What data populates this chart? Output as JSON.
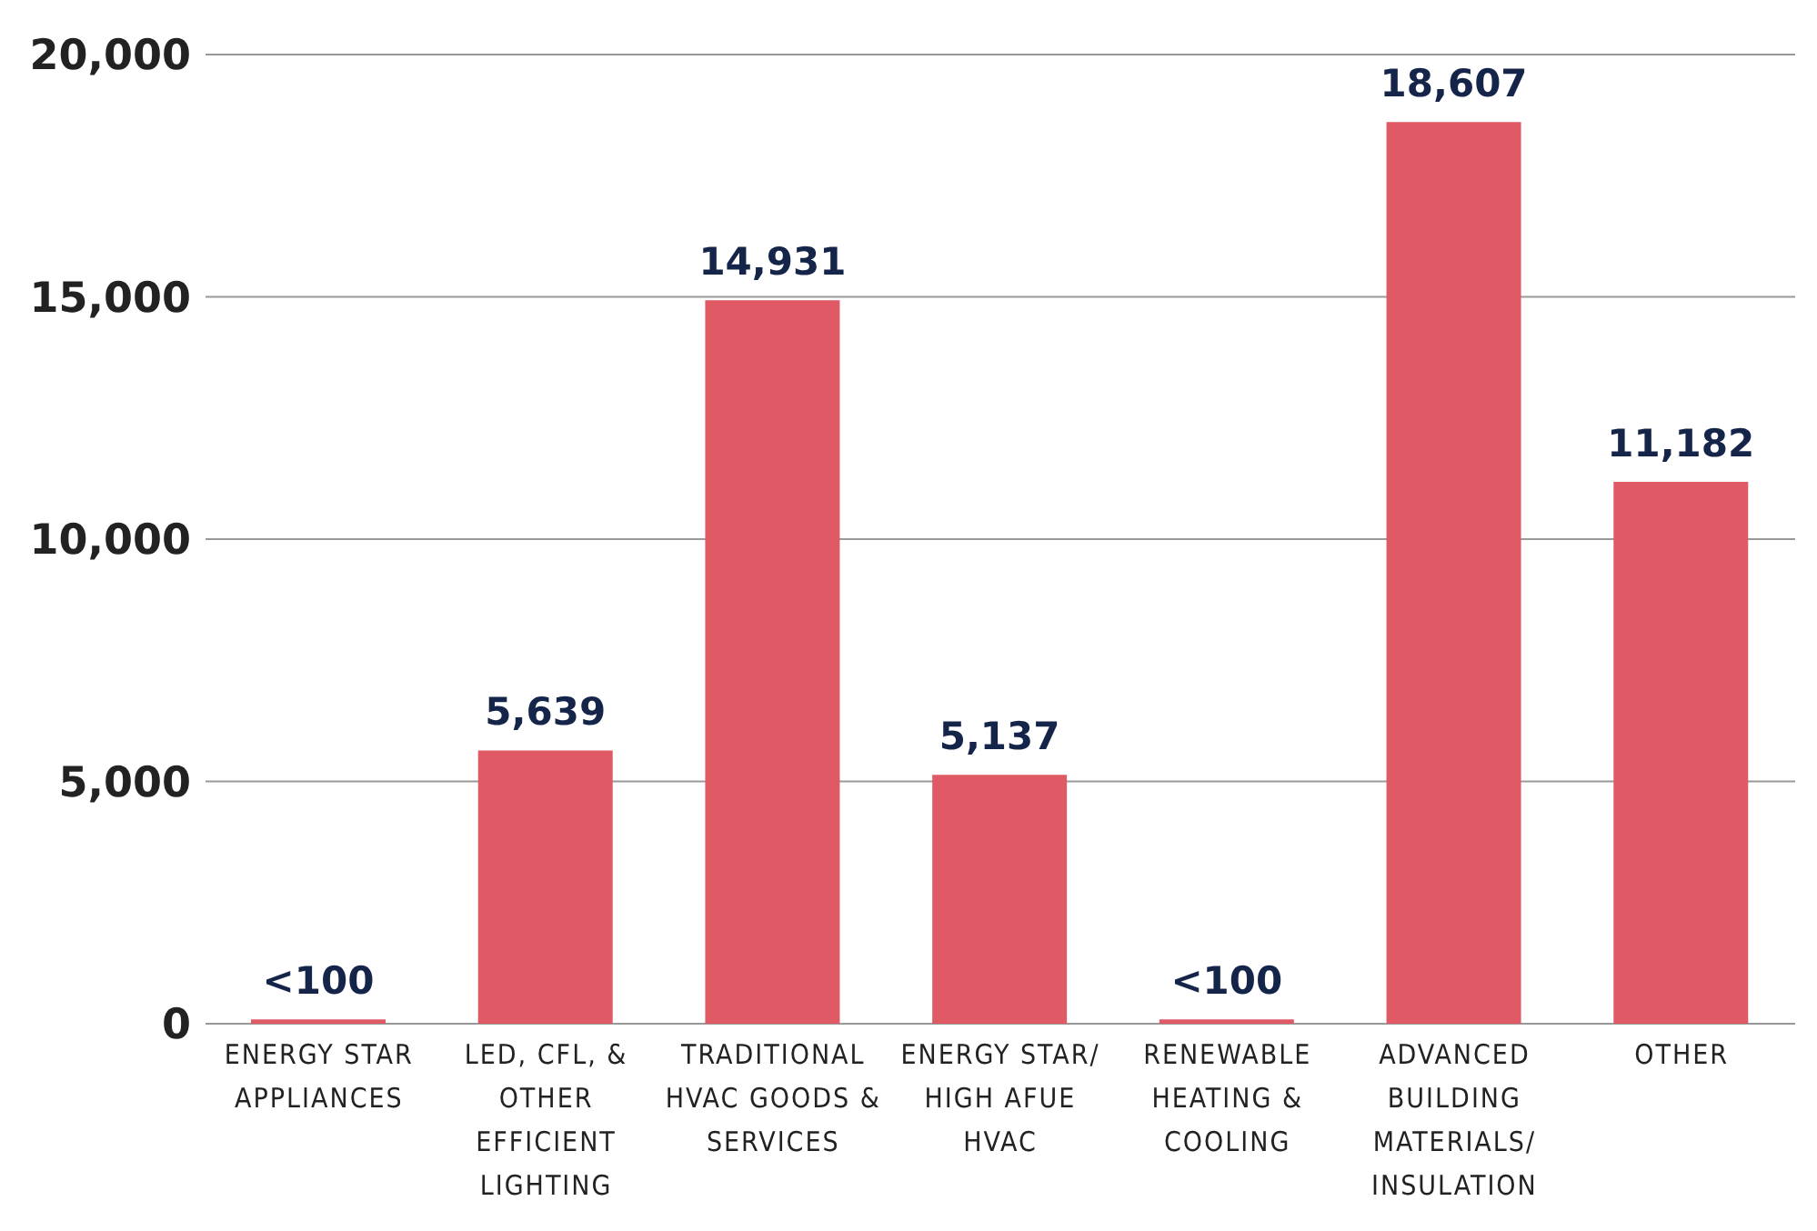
{
  "chart_data": {
    "type": "bar",
    "categories": [
      "ENERGY STAR APPLIANCES",
      "LED, CFL, & OTHER EFFICIENT LIGHTING",
      "TRADITIONAL HVAC GOODS & SERVICES",
      "ENERGY STAR/ HIGH AFUE HVAC",
      "RENEWABLE HEATING & COOLING",
      "ADVANCED BUILDING MATERIALS/ INSULATION",
      "OTHER"
    ],
    "values": [
      90,
      5639,
      14931,
      5137,
      90,
      18607,
      11182
    ],
    "value_labels": [
      "<100",
      "5,639",
      "14,931",
      "5,137",
      "<100",
      "18,607",
      "11,182"
    ],
    "color": "#e05a66",
    "ylim": [
      0,
      20000
    ],
    "yticks": [
      {
        "value": 0,
        "label": "0"
      },
      {
        "value": 5000,
        "label": "5,000"
      },
      {
        "value": 10000,
        "label": "10,000"
      },
      {
        "value": 15000,
        "label": "15,000"
      },
      {
        "value": 20000,
        "label": "20,000"
      }
    ],
    "grid": "y"
  }
}
